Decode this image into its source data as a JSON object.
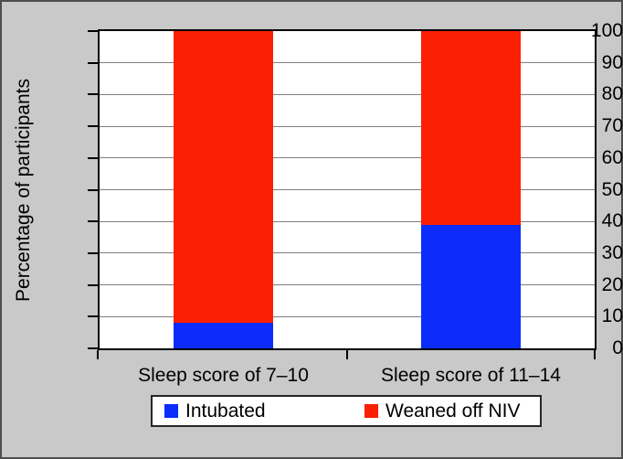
{
  "window": {
    "background": "#c9c9c9",
    "border_color": "#4e4e4e",
    "plot_background": "#ffffff",
    "axis_color": "#000000"
  },
  "chart_data": {
    "type": "bar",
    "subtype": "stacked-vertical",
    "title": "",
    "categories": [
      "Sleep score of 7–10",
      "Sleep score of 11–14"
    ],
    "series": [
      {
        "name": "Intubated",
        "color": "#0b2cfa",
        "values": [
          8,
          39
        ]
      },
      {
        "name": "Weaned off NIV",
        "color": "#fb1f04",
        "values": [
          92,
          61
        ]
      }
    ],
    "xlabel": "",
    "ylabel": "Percentage of participants",
    "ylim": [
      0,
      100
    ],
    "yticks": [
      0,
      10,
      20,
      30,
      40,
      50,
      60,
      70,
      80,
      90,
      100
    ],
    "grid": "horizontal",
    "gridline_color": "#7f7f7f",
    "legend_position": "bottom"
  }
}
